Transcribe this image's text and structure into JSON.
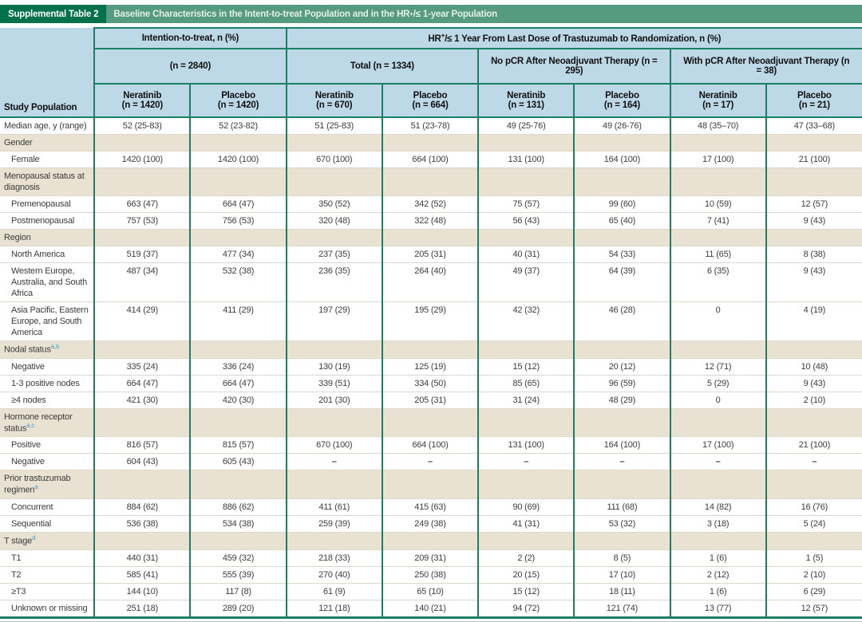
{
  "title_bar": {
    "tag": "Supplemental Table 2",
    "title_prefix": "Baseline Characteristics in the Intent-to-treat Population and in the HR",
    "title_sup": "+",
    "title_suffix": "/≤ 1-year Population"
  },
  "header": {
    "study_population": "Study Population",
    "itt_label": "Intention-to-treat, n (%)",
    "hr_prefix": "HR",
    "hr_sup": "+",
    "hr_suffix": "/≤ 1 Year From Last Dose of Trastuzumab to Randomization, n (%)",
    "groups": [
      {
        "label": "(n = 2840)"
      },
      {
        "label": "Total (n = 1334)"
      },
      {
        "label": "No pCR After Neoadjuvant Therapy (n = 295)"
      },
      {
        "label": "With pCR After Neoadjuvant Therapy (n = 38)"
      }
    ],
    "columns": [
      {
        "drug": "Neratinib",
        "n": "(n = 1420)"
      },
      {
        "drug": "Placebo",
        "n": "(n = 1420)"
      },
      {
        "drug": "Neratinib",
        "n": "(n = 670)"
      },
      {
        "drug": "Placebo",
        "n": "(n = 664)"
      },
      {
        "drug": "Neratinib",
        "n": "(n = 131)"
      },
      {
        "drug": "Placebo",
        "n": "(n = 164)"
      },
      {
        "drug": "Neratinib",
        "n": "(n = 17)"
      },
      {
        "drug": "Placebo",
        "n": "(n = 21)"
      }
    ]
  },
  "table": {
    "rows": [
      {
        "label": "Median age, y (range)",
        "indent": false,
        "category": false,
        "values": [
          "52 (25-83)",
          "52 (23-82)",
          "51 (25-83)",
          "51 (23-78)",
          "49 (25-76)",
          "49 (26-76)",
          "48 (35–70)",
          "47 (33–68)"
        ]
      },
      {
        "label": "Gender",
        "indent": false,
        "category": true,
        "values": []
      },
      {
        "label": "Female",
        "indent": true,
        "category": false,
        "values": [
          "1420 (100)",
          "1420 (100)",
          "670 (100)",
          "664 (100)",
          "131 (100)",
          "164 (100)",
          "17 (100)",
          "21 (100)"
        ]
      },
      {
        "label": "Menopausal status at diagnosis",
        "indent": false,
        "category": true,
        "values": []
      },
      {
        "label": "Premenopausal",
        "indent": true,
        "category": false,
        "values": [
          "663 (47)",
          "664 (47)",
          "350 (52)",
          "342 (52)",
          "75 (57)",
          "99 (60)",
          "10 (59)",
          "12 (57)"
        ]
      },
      {
        "label": "Postmenopausal",
        "indent": true,
        "category": false,
        "values": [
          "757 (53)",
          "756 (53)",
          "320 (48)",
          "322 (48)",
          "56 (43)",
          "65 (40)",
          "7 (41)",
          "9 (43)"
        ]
      },
      {
        "label": "Region",
        "indent": false,
        "category": true,
        "values": []
      },
      {
        "label": "North America",
        "indent": true,
        "category": false,
        "values": [
          "519 (37)",
          "477 (34)",
          "237 (35)",
          "205 (31)",
          "40 (31)",
          "54 (33)",
          "11 (65)",
          "8 (38)"
        ]
      },
      {
        "label": "Western Europe, Australia, and South Africa",
        "indent": true,
        "category": false,
        "values": [
          "487 (34)",
          "532 (38)",
          "236 (35)",
          "264 (40)",
          "49 (37)",
          "64 (39)",
          "6 (35)",
          "9 (43)"
        ]
      },
      {
        "label": "Asia Pacific, Eastern Europe, and South America",
        "indent": true,
        "category": false,
        "values": [
          "414 (29)",
          "411 (29)",
          "197 (29)",
          "195 (29)",
          "42 (32)",
          "46 (28)",
          "0",
          "4 (19)"
        ]
      },
      {
        "label": "Nodal status",
        "sup": "a,b",
        "indent": false,
        "category": true,
        "values": []
      },
      {
        "label": "Negative",
        "indent": true,
        "category": false,
        "values": [
          "335 (24)",
          "336 (24)",
          "130 (19)",
          "125 (19)",
          "15 (12)",
          "20 (12)",
          "12 (71)",
          "10 (48)"
        ]
      },
      {
        "label": "1-3 positive nodes",
        "indent": true,
        "category": false,
        "values": [
          "664 (47)",
          "664 (47)",
          "339 (51)",
          "334 (50)",
          "85 (65)",
          "96 (59)",
          "5 (29)",
          "9 (43)"
        ]
      },
      {
        "label": "≥4 nodes",
        "indent": true,
        "category": false,
        "values": [
          "421 (30)",
          "420 (30)",
          "201 (30)",
          "205 (31)",
          "31 (24)",
          "48 (29)",
          "0",
          "2 (10)"
        ]
      },
      {
        "label": "Hormone receptor status",
        "sup": "a,c",
        "indent": false,
        "category": true,
        "values": []
      },
      {
        "label": "Positive",
        "indent": true,
        "category": false,
        "values": [
          "816 (57)",
          "815 (57)",
          "670 (100)",
          "664 (100)",
          "131 (100)",
          "164 (100)",
          "17 (100)",
          "21 (100)"
        ]
      },
      {
        "label": "Negative",
        "indent": true,
        "category": false,
        "values": [
          "604 (43)",
          "605 (43)",
          "–",
          "–",
          "–",
          "–",
          "–",
          "–"
        ]
      },
      {
        "label": "Prior trastuzumab regimen",
        "sup": "a",
        "indent": false,
        "category": true,
        "values": []
      },
      {
        "label": "Concurrent",
        "indent": true,
        "category": false,
        "values": [
          "884 (62)",
          "886 (62)",
          "411 (61)",
          "415 (63)",
          "90 (69)",
          "111 (68)",
          "14 (82)",
          "16 (76)"
        ]
      },
      {
        "label": "Sequential",
        "indent": true,
        "category": false,
        "values": [
          "536 (38)",
          "534 (38)",
          "259 (39)",
          "249 (38)",
          "41 (31)",
          "53 (32)",
          "3 (18)",
          "5 (24)"
        ]
      },
      {
        "label": "T stage",
        "sup": "d",
        "indent": false,
        "category": true,
        "values": []
      },
      {
        "label": "T1",
        "indent": true,
        "category": false,
        "values": [
          "440 (31)",
          "459 (32)",
          "218 (33)",
          "209 (31)",
          "2 (2)",
          "8 (5)",
          "1 (6)",
          "1 (5)"
        ]
      },
      {
        "label": "T2",
        "indent": true,
        "category": false,
        "values": [
          "585 (41)",
          "555 (39)",
          "270 (40)",
          "250 (38)",
          "20 (15)",
          "17 (10)",
          "2 (12)",
          "2 (10)"
        ]
      },
      {
        "label": "≥T3",
        "indent": true,
        "category": false,
        "values": [
          "144 (10)",
          "117 (8)",
          "61 (9)",
          "65 (10)",
          "15 (12)",
          "18 (11)",
          "1 (6)",
          "6 (29)"
        ]
      },
      {
        "label": "Unknown or missing",
        "indent": true,
        "category": false,
        "values": [
          "251 (18)",
          "289 (20)",
          "121 (18)",
          "140 (21)",
          "94 (72)",
          "121 (74)",
          "13 (77)",
          "12 (57)"
        ]
      }
    ]
  },
  "colors": {
    "tag_green": "#00714b",
    "title_green": "#569a81",
    "header_blue": "#bdd8e7",
    "category_beige": "#e9e2d3",
    "border_teal": "#1b7f63",
    "superscript_blue": "#44a3c8"
  }
}
